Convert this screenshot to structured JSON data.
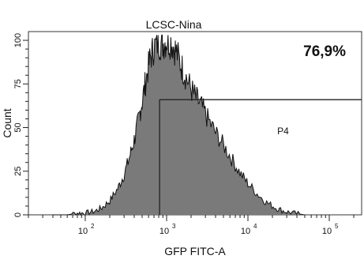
{
  "chart_data": {
    "type": "histogram",
    "title": "LCSC-Nina",
    "xlabel": "GFP FITC-A",
    "ylabel": "Count",
    "x_scale": "log",
    "xlim": [
      20,
      250000
    ],
    "ylim": [
      0,
      105
    ],
    "x_ticks": [
      {
        "value": 100,
        "base": "10",
        "exp": "2"
      },
      {
        "value": 1000,
        "base": "10",
        "exp": "3"
      },
      {
        "value": 10000,
        "base": "10",
        "exp": "4"
      },
      {
        "value": 100000,
        "base": "10",
        "exp": "5"
      }
    ],
    "y_ticks": [
      {
        "value": 0,
        "label": "0"
      },
      {
        "value": 25,
        "label": "25"
      },
      {
        "value": 50,
        "label": "50"
      },
      {
        "value": 75,
        "label": "75"
      },
      {
        "value": 100,
        "label": "100"
      }
    ],
    "gate": {
      "name": "P4",
      "start": 820,
      "end": 250000,
      "level": 66,
      "percent_label": "76,9%"
    },
    "histogram": [
      {
        "x": 40,
        "y": 0
      },
      {
        "x": 60,
        "y": 0
      },
      {
        "x": 80,
        "y": 1
      },
      {
        "x": 100,
        "y": 1
      },
      {
        "x": 130,
        "y": 2
      },
      {
        "x": 160,
        "y": 4
      },
      {
        "x": 200,
        "y": 8
      },
      {
        "x": 250,
        "y": 15
      },
      {
        "x": 300,
        "y": 23
      },
      {
        "x": 350,
        "y": 33
      },
      {
        "x": 400,
        "y": 43
      },
      {
        "x": 450,
        "y": 54
      },
      {
        "x": 500,
        "y": 65
      },
      {
        "x": 560,
        "y": 78
      },
      {
        "x": 630,
        "y": 90
      },
      {
        "x": 700,
        "y": 96
      },
      {
        "x": 800,
        "y": 99
      },
      {
        "x": 900,
        "y": 98
      },
      {
        "x": 1000,
        "y": 100
      },
      {
        "x": 1150,
        "y": 99
      },
      {
        "x": 1300,
        "y": 94
      },
      {
        "x": 1500,
        "y": 86
      },
      {
        "x": 1700,
        "y": 80
      },
      {
        "x": 2000,
        "y": 72
      },
      {
        "x": 2300,
        "y": 67
      },
      {
        "x": 2700,
        "y": 62
      },
      {
        "x": 3200,
        "y": 55
      },
      {
        "x": 4000,
        "y": 47
      },
      {
        "x": 5000,
        "y": 40
      },
      {
        "x": 6300,
        "y": 32
      },
      {
        "x": 8000,
        "y": 24
      },
      {
        "x": 10000,
        "y": 18
      },
      {
        "x": 13000,
        "y": 12
      },
      {
        "x": 17000,
        "y": 7
      },
      {
        "x": 22000,
        "y": 4
      },
      {
        "x": 28000,
        "y": 2
      },
      {
        "x": 36000,
        "y": 1
      },
      {
        "x": 50000,
        "y": 0
      }
    ],
    "grid": false,
    "legend": "none"
  },
  "colors": {
    "fill": "#7a7a7a",
    "outline": "#111111",
    "axis": "#222222",
    "background": "#ffffff"
  }
}
